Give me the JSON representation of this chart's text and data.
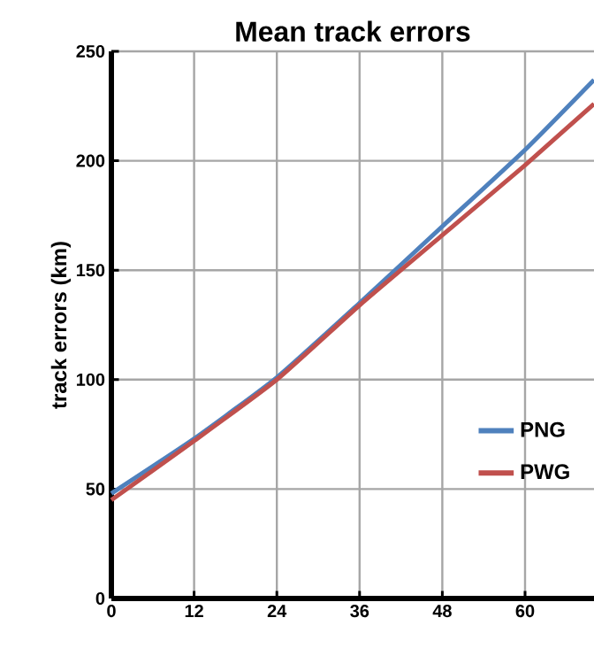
{
  "chart_data": {
    "type": "line",
    "title": "Mean track errors",
    "ylabel": "track errors (km)",
    "x": [
      0,
      12,
      24,
      36,
      48,
      60,
      70
    ],
    "series": [
      {
        "name": "PNG",
        "color": "#4f81bd",
        "values": [
          48,
          73,
          101,
          135,
          170,
          205,
          237
        ]
      },
      {
        "name": "PWG",
        "color": "#c0504d",
        "values": [
          45,
          72,
          100,
          134,
          166,
          198,
          226
        ]
      }
    ],
    "xlim": [
      0,
      70
    ],
    "xticks": [
      0,
      12,
      24,
      36,
      48,
      60
    ],
    "ylim": [
      0,
      250
    ],
    "yticks": [
      0,
      50,
      100,
      150,
      200,
      250
    ],
    "grid": true,
    "legend": "right",
    "marker": "none",
    "line_style": "solid"
  }
}
